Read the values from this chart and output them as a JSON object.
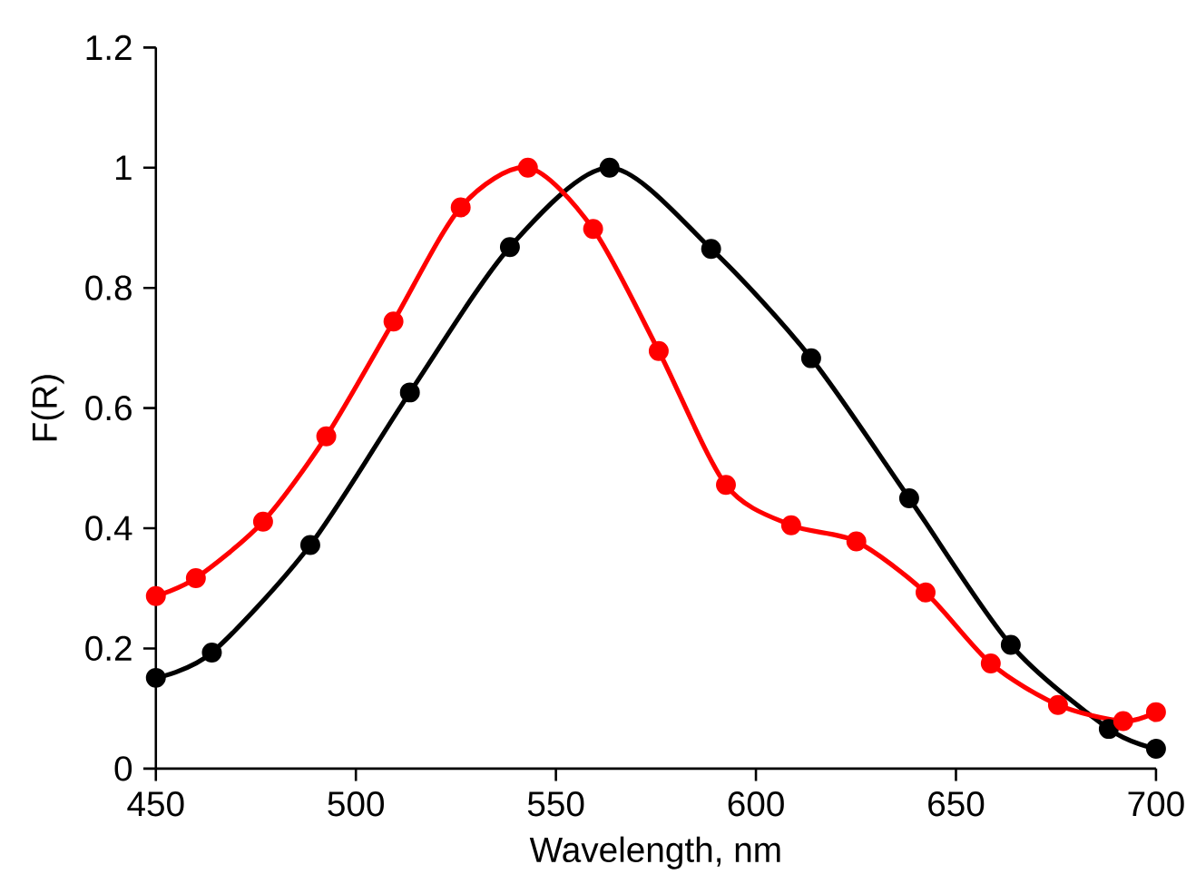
{
  "chart_data": {
    "type": "line",
    "xlabel": "Wavelength, nm",
    "ylabel": "F(R)",
    "xlim": [
      450,
      700
    ],
    "ylim": [
      0,
      1.2
    ],
    "xticks": [
      450,
      500,
      550,
      600,
      650,
      700
    ],
    "yticks": [
      0,
      0.2,
      0.4,
      0.6,
      0.8,
      1,
      1.2
    ],
    "marker": "circle",
    "line_style": "solid",
    "series": [
      {
        "color": "#000000",
        "x": [
          450,
          464,
          488.6,
          513.5,
          538.5,
          563.4,
          588.8,
          613.8,
          638.3,
          663.7,
          688.2,
          700
        ],
        "values": [
          0.151,
          0.193,
          0.372,
          0.626,
          0.868,
          1.0,
          0.865,
          0.683,
          0.45,
          0.206,
          0.066,
          0.033
        ]
      },
      {
        "color": "#ff0000",
        "x": [
          450,
          460,
          476.8,
          492.6,
          509.4,
          526.2,
          543,
          559.3,
          575.7,
          592.5,
          608.8,
          625.1,
          642.4,
          658.7,
          675.5,
          691.8,
          700
        ],
        "values": [
          0.287,
          0.317,
          0.411,
          0.553,
          0.744,
          0.934,
          1.0,
          0.898,
          0.695,
          0.472,
          0.405,
          0.378,
          0.293,
          0.175,
          0.106,
          0.079,
          0.094
        ]
      }
    ]
  }
}
